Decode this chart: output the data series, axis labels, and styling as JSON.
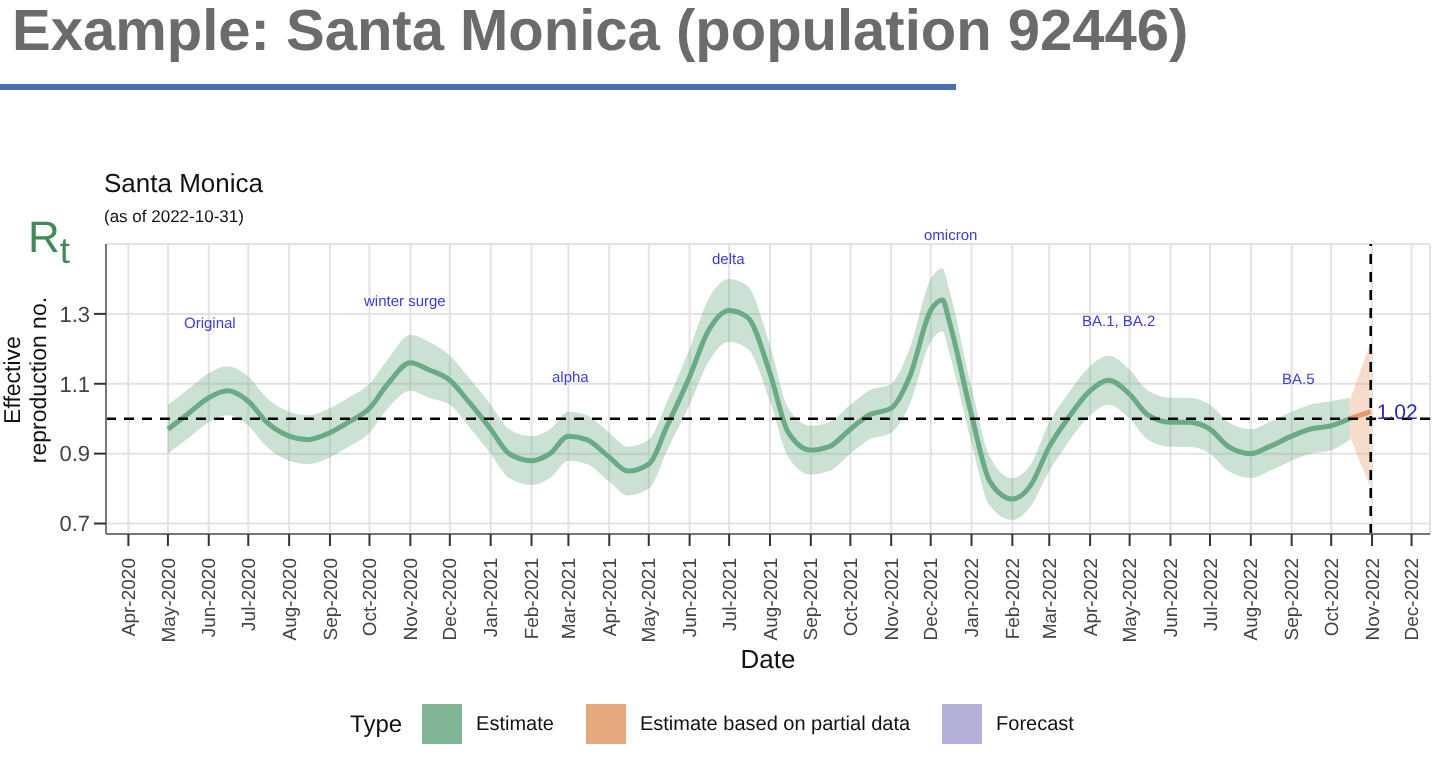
{
  "chart_data": {
    "type": "line",
    "title": "Example: Santa Monica (population 92446)",
    "subtitle": "Santa Monica",
    "xlabel": "Date",
    "ylabel": "Effective reproduction no.",
    "legend_title": "Type",
    "legend": "bottom",
    "grid": true,
    "marker": "none",
    "xlim": [
      "2020-03-15",
      "2022-12-15"
    ],
    "ylim": [
      0.67,
      1.5
    ],
    "yticks": [
      0.7,
      0.9,
      1.1,
      1.3
    ],
    "xticks": [
      {
        "value": "2020-04-01",
        "label": "Apr-2020"
      },
      {
        "value": "2020-05-01",
        "label": "May-2020"
      },
      {
        "value": "2020-06-01",
        "label": "Jun-2020"
      },
      {
        "value": "2020-07-01",
        "label": "Jul-2020"
      },
      {
        "value": "2020-08-01",
        "label": "Aug-2020"
      },
      {
        "value": "2020-09-01",
        "label": "Sep-2020"
      },
      {
        "value": "2020-10-01",
        "label": "Oct-2020"
      },
      {
        "value": "2020-11-01",
        "label": "Nov-2020"
      },
      {
        "value": "2020-12-01",
        "label": "Dec-2020"
      },
      {
        "value": "2021-01-01",
        "label": "Jan-2021"
      },
      {
        "value": "2021-02-01",
        "label": "Feb-2021"
      },
      {
        "value": "2021-03-01",
        "label": "Mar-2021"
      },
      {
        "value": "2021-04-01",
        "label": "Apr-2021"
      },
      {
        "value": "2021-05-01",
        "label": "May-2021"
      },
      {
        "value": "2021-06-01",
        "label": "Jun-2021"
      },
      {
        "value": "2021-07-01",
        "label": "Jul-2021"
      },
      {
        "value": "2021-08-01",
        "label": "Aug-2021"
      },
      {
        "value": "2021-09-01",
        "label": "Sep-2021"
      },
      {
        "value": "2021-10-01",
        "label": "Oct-2021"
      },
      {
        "value": "2021-11-01",
        "label": "Nov-2021"
      },
      {
        "value": "2021-12-01",
        "label": "Dec-2021"
      },
      {
        "value": "2022-01-01",
        "label": "Jan-2022"
      },
      {
        "value": "2022-02-01",
        "label": "Feb-2022"
      },
      {
        "value": "2022-03-01",
        "label": "Mar-2022"
      },
      {
        "value": "2022-04-01",
        "label": "Apr-2022"
      },
      {
        "value": "2022-05-01",
        "label": "May-2022"
      },
      {
        "value": "2022-06-01",
        "label": "Jun-2022"
      },
      {
        "value": "2022-07-01",
        "label": "Jul-2022"
      },
      {
        "value": "2022-08-01",
        "label": "Aug-2022"
      },
      {
        "value": "2022-09-01",
        "label": "Sep-2022"
      },
      {
        "value": "2022-10-01",
        "label": "Oct-2022"
      },
      {
        "value": "2022-11-01",
        "label": "Nov-2022"
      },
      {
        "value": "2022-12-01",
        "label": "Dec-2022"
      }
    ],
    "series": [
      {
        "name": "Estimate",
        "color": "#6aaa84",
        "x": [
          "2020-05-01",
          "2020-05-15",
          "2020-06-01",
          "2020-06-15",
          "2020-07-01",
          "2020-07-15",
          "2020-08-01",
          "2020-08-15",
          "2020-09-01",
          "2020-09-15",
          "2020-10-01",
          "2020-10-15",
          "2020-11-01",
          "2020-11-15",
          "2020-12-01",
          "2020-12-15",
          "2021-01-01",
          "2021-01-15",
          "2021-02-01",
          "2021-02-15",
          "2021-03-01",
          "2021-03-15",
          "2021-04-01",
          "2021-04-15",
          "2021-05-01",
          "2021-05-15",
          "2021-06-01",
          "2021-06-15",
          "2021-07-01",
          "2021-07-15",
          "2021-08-01",
          "2021-08-15",
          "2021-09-01",
          "2021-09-15",
          "2021-10-01",
          "2021-10-15",
          "2021-11-01",
          "2021-11-15",
          "2021-12-01",
          "2021-12-10",
          "2021-12-15",
          "2022-01-01",
          "2022-01-15",
          "2022-02-01",
          "2022-02-15",
          "2022-03-01",
          "2022-03-15",
          "2022-04-01",
          "2022-04-15",
          "2022-05-01",
          "2022-05-15",
          "2022-06-01",
          "2022-06-15",
          "2022-07-01",
          "2022-07-15",
          "2022-08-01",
          "2022-08-15",
          "2022-09-01",
          "2022-09-15",
          "2022-10-01",
          "2022-10-15"
        ],
        "values": [
          0.97,
          1.01,
          1.06,
          1.08,
          1.05,
          0.99,
          0.95,
          0.94,
          0.96,
          0.99,
          1.03,
          1.1,
          1.16,
          1.14,
          1.11,
          1.05,
          0.97,
          0.9,
          0.88,
          0.9,
          0.95,
          0.94,
          0.89,
          0.85,
          0.87,
          0.98,
          1.12,
          1.25,
          1.31,
          1.29,
          1.13,
          0.96,
          0.91,
          0.92,
          0.97,
          1.01,
          1.03,
          1.12,
          1.31,
          1.34,
          1.28,
          1.01,
          0.82,
          0.77,
          0.81,
          0.92,
          1.0,
          1.08,
          1.11,
          1.07,
          1.01,
          0.99,
          0.99,
          0.97,
          0.92,
          0.9,
          0.92,
          0.95,
          0.97,
          0.98,
          1.0
        ],
        "lower": [
          0.9,
          0.94,
          0.99,
          1.01,
          0.98,
          0.92,
          0.88,
          0.87,
          0.89,
          0.92,
          0.96,
          1.03,
          1.08,
          1.06,
          1.04,
          0.98,
          0.9,
          0.83,
          0.81,
          0.83,
          0.88,
          0.87,
          0.82,
          0.78,
          0.8,
          0.91,
          1.04,
          1.16,
          1.22,
          1.2,
          1.05,
          0.89,
          0.84,
          0.85,
          0.9,
          0.94,
          0.96,
          1.04,
          1.22,
          1.25,
          1.19,
          0.93,
          0.75,
          0.71,
          0.75,
          0.85,
          0.93,
          1.01,
          1.04,
          1.0,
          0.94,
          0.92,
          0.92,
          0.9,
          0.85,
          0.83,
          0.85,
          0.88,
          0.9,
          0.91,
          0.94
        ],
        "upper": [
          1.04,
          1.08,
          1.13,
          1.15,
          1.12,
          1.06,
          1.02,
          1.01,
          1.03,
          1.06,
          1.1,
          1.17,
          1.24,
          1.22,
          1.18,
          1.12,
          1.04,
          0.97,
          0.95,
          0.97,
          1.02,
          1.01,
          0.96,
          0.92,
          0.94,
          1.05,
          1.2,
          1.34,
          1.4,
          1.38,
          1.21,
          1.03,
          0.98,
          0.99,
          1.04,
          1.08,
          1.1,
          1.2,
          1.4,
          1.43,
          1.37,
          1.09,
          0.89,
          0.83,
          0.87,
          0.99,
          1.07,
          1.15,
          1.18,
          1.14,
          1.08,
          1.06,
          1.06,
          1.04,
          0.99,
          0.97,
          0.99,
          1.02,
          1.04,
          1.05,
          1.06
        ]
      },
      {
        "name": "Estimate based on partial data",
        "color": "#e39a6a",
        "x": [
          "2022-10-15",
          "2022-10-31"
        ],
        "values": [
          1.0,
          1.02
        ],
        "lower": [
          0.95,
          0.8
        ],
        "upper": [
          1.05,
          1.22
        ]
      },
      {
        "name": "Forecast",
        "color": "#a5a2d2"
      }
    ],
    "ref_lines": [
      {
        "axis": "y",
        "value": 1.0,
        "line_style": "dashed",
        "color": "#000000"
      },
      {
        "axis": "x",
        "value": "2022-10-31",
        "line_style": "dashed",
        "color": "#000000"
      }
    ],
    "annotations": [
      "(as of 2022-10-31)",
      "R$_{t}$",
      "Original",
      "winter surge",
      "alpha",
      "delta",
      "omicron",
      "BA.1, BA.2",
      "BA.5",
      {
        "text": "1.02",
        "x": "2022-10-31",
        "y": 1.02
      }
    ]
  }
}
